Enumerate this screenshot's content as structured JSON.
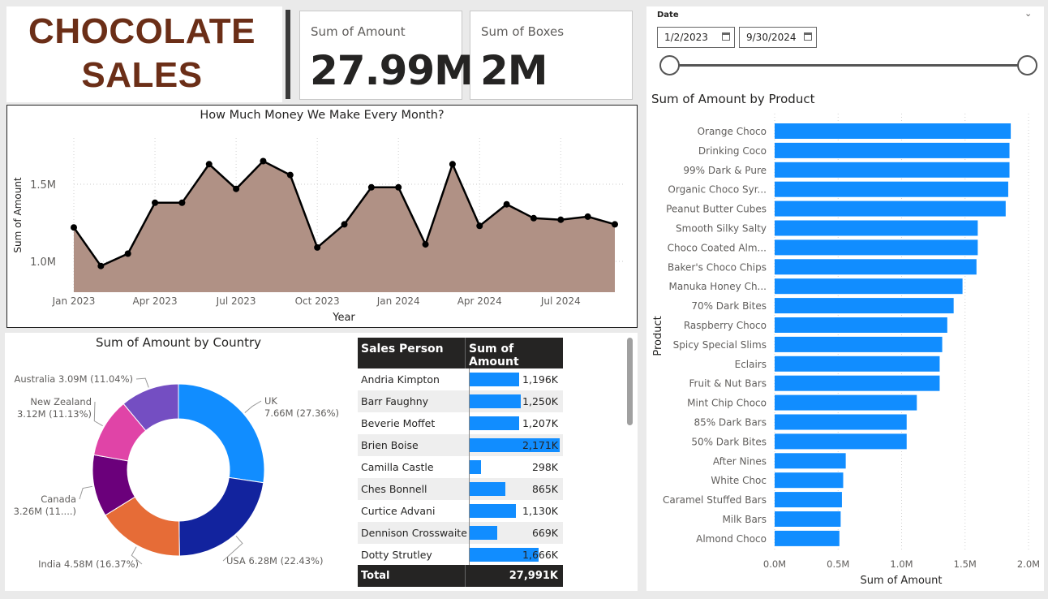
{
  "brand": {
    "line1": "CHOCOLATE",
    "line2": "SALES",
    "color": "#6b2e17"
  },
  "cards": [
    {
      "label": "Sum of Amount",
      "value": "27.99M"
    },
    {
      "label": "Sum of Boxes",
      "value": "2M"
    }
  ],
  "date_filter": {
    "label": "Date",
    "start": "1/2/2023",
    "end": "9/30/2024",
    "start_icon": "calendar-icon",
    "end_icon": "calendar-icon",
    "collapse_icon": "chevron-down-icon"
  },
  "colors": {
    "accent": "#118dff",
    "area": "#b09185",
    "dark": "#252423"
  },
  "line_chart": {
    "title": "How Much Money We Make Every Month?",
    "xlabel": "Year",
    "ylabel": "Sum of Amount",
    "ytick_labels": [
      "1.0M",
      "1.5M"
    ],
    "ytick_values": [
      1.0,
      1.5
    ],
    "xtick_labels": [
      "Jan 2023",
      "Apr 2023",
      "Jul 2023",
      "Oct 2023",
      "Jan 2024",
      "Apr 2024",
      "Jul 2024"
    ]
  },
  "donut": {
    "title": "Sum of Amount by Country",
    "labels": [
      {
        "l1": "UK",
        "l2": "7.66M (27.36%)"
      },
      {
        "l1": "USA 6.28M (22.43%)",
        "l2": ""
      },
      {
        "l1": "India 4.58M (16.37%)",
        "l2": ""
      },
      {
        "l1": "Canada",
        "l2": "3.26M (11....)"
      },
      {
        "l1": "New Zealand",
        "l2": "3.12M (11.13%)"
      },
      {
        "l1": "Australia 3.09M (11.04%)",
        "l2": ""
      }
    ]
  },
  "table": {
    "col1": "Sales Person",
    "col2": "Sum of Amount",
    "rows": [
      {
        "name": "Andria Kimpton",
        "value": "1,196K"
      },
      {
        "name": "Barr Faughny",
        "value": "1,250K"
      },
      {
        "name": "Beverie Moffet",
        "value": "1,207K"
      },
      {
        "name": "Brien Boise",
        "value": "2,171K"
      },
      {
        "name": "Camilla Castle",
        "value": "298K"
      },
      {
        "name": "Ches Bonnell",
        "value": "865K"
      },
      {
        "name": "Curtice Advani",
        "value": "1,130K"
      },
      {
        "name": "Dennison Crosswaite",
        "value": "669K"
      },
      {
        "name": "Dotty Strutley",
        "value": "1,666K"
      }
    ],
    "total_label": "Total",
    "total_value": "27,991K"
  },
  "bar_chart": {
    "title": "Sum of Amount by Product",
    "xlabel": "Sum of Amount",
    "ylabel": "Product",
    "xtick_labels": [
      "0.0M",
      "0.5M",
      "1.0M",
      "1.5M",
      "2.0M"
    ]
  },
  "chart_data": [
    {
      "type": "area",
      "title": "How Much Money We Make Every Month?",
      "xlabel": "Year",
      "ylabel": "Sum of Amount",
      "x": [
        "Jan 2023",
        "Feb 2023",
        "Mar 2023",
        "Apr 2023",
        "May 2023",
        "Jun 2023",
        "Jul 2023",
        "Aug 2023",
        "Sep 2023",
        "Oct 2023",
        "Nov 2023",
        "Dec 2023",
        "Jan 2024",
        "Feb 2024",
        "Mar 2024",
        "Apr 2024",
        "May 2024",
        "Jun 2024",
        "Jul 2024",
        "Aug 2024",
        "Sep 2024"
      ],
      "values": [
        1.22,
        0.97,
        1.05,
        1.38,
        1.38,
        1.63,
        1.47,
        1.65,
        1.56,
        1.09,
        1.24,
        1.48,
        1.48,
        1.11,
        1.63,
        1.23,
        1.37,
        1.28,
        1.27,
        1.29,
        1.24
      ],
      "unit": "M",
      "ylim": [
        0.8,
        1.8
      ],
      "grid": true
    },
    {
      "type": "pie",
      "title": "Sum of Amount by Country",
      "categories": [
        "UK",
        "USA",
        "India",
        "Canada",
        "New Zealand",
        "Australia"
      ],
      "values": [
        7.66,
        6.28,
        4.58,
        3.26,
        3.12,
        3.09
      ],
      "colors": [
        "#118dff",
        "#12239e",
        "#e66c37",
        "#6b007b",
        "#e044a7",
        "#744ec2"
      ],
      "donut": true
    },
    {
      "type": "table",
      "columns": [
        "Sales Person",
        "Sum of Amount"
      ],
      "categories": [
        "Andria Kimpton",
        "Barr Faughny",
        "Beverie Moffet",
        "Brien Boise",
        "Camilla Castle",
        "Ches Bonnell",
        "Curtice Advani",
        "Dennison Crosswaite",
        "Dotty Strutley"
      ],
      "values": [
        1196,
        1250,
        1207,
        2171,
        298,
        865,
        1130,
        669,
        1666
      ],
      "unit": "K",
      "max": 2171,
      "total": 27991
    },
    {
      "type": "bar",
      "orientation": "horizontal",
      "title": "Sum of Amount by Product",
      "xlabel": "Sum of Amount",
      "ylabel": "Product",
      "categories": [
        "Orange Choco",
        "Drinking Coco",
        "99% Dark & Pure",
        "Organic Choco Syr...",
        "Peanut Butter Cubes",
        "Smooth Silky Salty",
        "Choco Coated Alm...",
        "Baker's Choco Chips",
        "Manuka Honey Ch...",
        "70% Dark Bites",
        "Raspberry Choco",
        "Spicy Special Slims",
        "Eclairs",
        "Fruit & Nut Bars",
        "Mint Chip Choco",
        "85% Dark Bars",
        "50% Dark Bites",
        "After Nines",
        "White Choc",
        "Caramel Stuffed Bars",
        "Milk Bars",
        "Almond Choco"
      ],
      "values": [
        1.86,
        1.85,
        1.85,
        1.84,
        1.82,
        1.6,
        1.6,
        1.59,
        1.48,
        1.41,
        1.36,
        1.32,
        1.3,
        1.3,
        1.12,
        1.04,
        1.04,
        0.56,
        0.54,
        0.53,
        0.52,
        0.51
      ],
      "unit": "M",
      "xlim": [
        0,
        2.0
      ],
      "grid": true
    }
  ]
}
